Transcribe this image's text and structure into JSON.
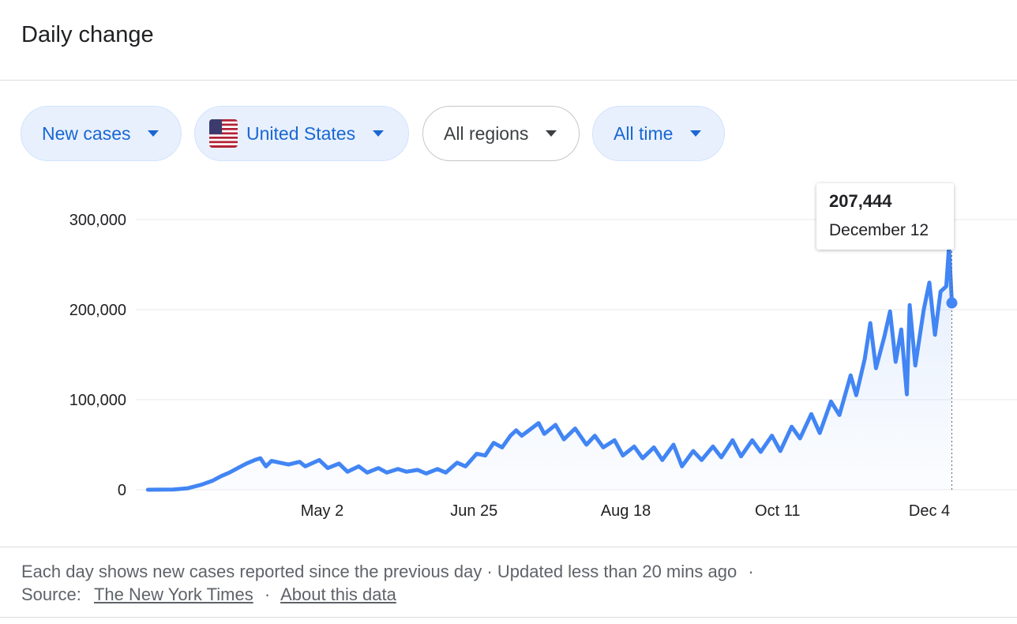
{
  "title": "Daily change",
  "filters": {
    "metric": "New cases",
    "country": "United States",
    "region": "All regions",
    "time": "All time"
  },
  "tooltip": {
    "value": "207,444",
    "date": "December 12"
  },
  "footer": {
    "description": "Each day shows new cases reported since the previous day · Updated less than 20 mins ago",
    "dot": "·",
    "source_label": "Source:",
    "source_link": "The New York Times",
    "about_link": "About this data"
  },
  "colors": {
    "line": "#4285f4",
    "chip_active_bg": "#e8f0fe",
    "chip_active_text": "#1967d2"
  },
  "chart_data": {
    "type": "area",
    "title": "",
    "xlabel": "",
    "ylabel": "",
    "ylim": [
      0,
      300000
    ],
    "y_ticks": [
      0,
      100000,
      200000,
      300000
    ],
    "y_tick_labels": [
      "0",
      "100,000",
      "200,000",
      "300,000"
    ],
    "x_tick_labels": [
      "May 2",
      "Jun 25",
      "Aug 18",
      "Oct 11",
      "Dec 4"
    ],
    "x_tick_dates": [
      "2020-05-02",
      "2020-06-25",
      "2020-08-18",
      "2020-10-11",
      "2020-12-04"
    ],
    "grid": true,
    "highlight": {
      "date": "2020-12-12",
      "value": 207444
    },
    "series": [
      {
        "values": [
          [
            "2020-03-01",
            0
          ],
          [
            "2020-03-10",
            300
          ],
          [
            "2020-03-15",
            1500
          ],
          [
            "2020-03-20",
            5500
          ],
          [
            "2020-03-24",
            10000
          ],
          [
            "2020-03-27",
            15000
          ],
          [
            "2020-03-30",
            19000
          ],
          [
            "2020-04-02",
            24000
          ],
          [
            "2020-04-05",
            29000
          ],
          [
            "2020-04-08",
            33000
          ],
          [
            "2020-04-10",
            35000
          ],
          [
            "2020-04-12",
            26000
          ],
          [
            "2020-04-14",
            32000
          ],
          [
            "2020-04-17",
            30000
          ],
          [
            "2020-04-20",
            28000
          ],
          [
            "2020-04-24",
            31000
          ],
          [
            "2020-04-26",
            26000
          ],
          [
            "2020-05-01",
            33000
          ],
          [
            "2020-05-04",
            24000
          ],
          [
            "2020-05-08",
            29000
          ],
          [
            "2020-05-11",
            20000
          ],
          [
            "2020-05-15",
            26000
          ],
          [
            "2020-05-18",
            19000
          ],
          [
            "2020-05-22",
            24000
          ],
          [
            "2020-05-25",
            19000
          ],
          [
            "2020-05-29",
            23000
          ],
          [
            "2020-06-01",
            20000
          ],
          [
            "2020-06-05",
            22000
          ],
          [
            "2020-06-08",
            18000
          ],
          [
            "2020-06-12",
            23000
          ],
          [
            "2020-06-15",
            19000
          ],
          [
            "2020-06-19",
            30000
          ],
          [
            "2020-06-22",
            26000
          ],
          [
            "2020-06-26",
            40000
          ],
          [
            "2020-06-29",
            38000
          ],
          [
            "2020-07-02",
            52000
          ],
          [
            "2020-07-05",
            47000
          ],
          [
            "2020-07-08",
            60000
          ],
          [
            "2020-07-10",
            66000
          ],
          [
            "2020-07-12",
            60000
          ],
          [
            "2020-07-15",
            67000
          ],
          [
            "2020-07-18",
            74000
          ],
          [
            "2020-07-20",
            62000
          ],
          [
            "2020-07-24",
            72000
          ],
          [
            "2020-07-27",
            56000
          ],
          [
            "2020-07-31",
            68000
          ],
          [
            "2020-08-04",
            50000
          ],
          [
            "2020-08-07",
            60000
          ],
          [
            "2020-08-10",
            47000
          ],
          [
            "2020-08-14",
            55000
          ],
          [
            "2020-08-17",
            38000
          ],
          [
            "2020-08-21",
            48000
          ],
          [
            "2020-08-24",
            35000
          ],
          [
            "2020-08-28",
            47000
          ],
          [
            "2020-08-31",
            33000
          ],
          [
            "2020-09-04",
            50000
          ],
          [
            "2020-09-07",
            26000
          ],
          [
            "2020-09-11",
            43000
          ],
          [
            "2020-09-14",
            33000
          ],
          [
            "2020-09-18",
            48000
          ],
          [
            "2020-09-21",
            36000
          ],
          [
            "2020-09-25",
            55000
          ],
          [
            "2020-09-28",
            37000
          ],
          [
            "2020-10-02",
            55000
          ],
          [
            "2020-10-05",
            42000
          ],
          [
            "2020-10-09",
            60000
          ],
          [
            "2020-10-12",
            43000
          ],
          [
            "2020-10-16",
            70000
          ],
          [
            "2020-10-19",
            57000
          ],
          [
            "2020-10-23",
            84000
          ],
          [
            "2020-10-26",
            63000
          ],
          [
            "2020-10-30",
            98000
          ],
          [
            "2020-11-02",
            83000
          ],
          [
            "2020-11-06",
            127000
          ],
          [
            "2020-11-08",
            105000
          ],
          [
            "2020-11-11",
            145000
          ],
          [
            "2020-11-13",
            185000
          ],
          [
            "2020-11-15",
            135000
          ],
          [
            "2020-11-18",
            170000
          ],
          [
            "2020-11-20",
            198000
          ],
          [
            "2020-11-22",
            142000
          ],
          [
            "2020-11-24",
            178000
          ],
          [
            "2020-11-26",
            106000
          ],
          [
            "2020-11-27",
            205000
          ],
          [
            "2020-11-29",
            138000
          ],
          [
            "2020-12-02",
            200000
          ],
          [
            "2020-12-04",
            230000
          ],
          [
            "2020-12-06",
            172000
          ],
          [
            "2020-12-08",
            220000
          ],
          [
            "2020-12-10",
            226000
          ],
          [
            "2020-12-11",
            270000
          ],
          [
            "2020-12-12",
            207444
          ]
        ]
      }
    ]
  }
}
